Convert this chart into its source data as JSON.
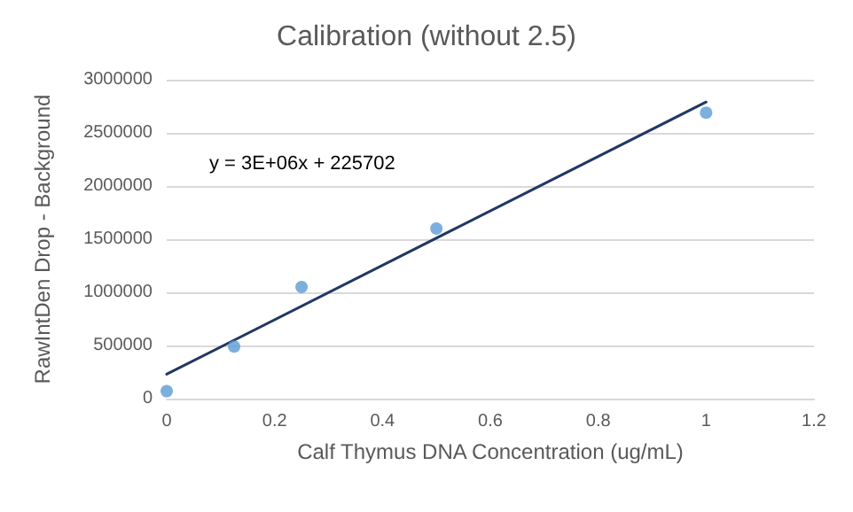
{
  "chart_data": {
    "type": "scatter",
    "title": "Calibration (without 2.5)",
    "xlabel": "Calf Thymus DNA Concentration (ug/mL)",
    "ylabel": "RawIntDen Drop - Background",
    "annotations": [
      "y = 3E+06x + 225702"
    ],
    "series": [
      {
        "color": "#5b9bd5",
        "marker": "circle",
        "x": [
          0,
          0.125,
          0.25,
          0.5,
          1
        ],
        "values": [
          70000,
          490000,
          1050000,
          1600000,
          2690000
        ]
      },
      {
        "type": "line",
        "marker": "none",
        "color": "#203864",
        "x": [
          0,
          1
        ],
        "values": [
          230000,
          2790000
        ]
      }
    ],
    "xlim": [
      0,
      1.2
    ],
    "xticks": [
      0,
      0.2,
      0.4,
      0.6,
      0.8,
      1,
      1.2
    ],
    "ylim": [
      0,
      3000000
    ],
    "yticks": [
      0,
      500000,
      1000000,
      1500000,
      2000000,
      2500000,
      3000000
    ],
    "grid": "y"
  }
}
